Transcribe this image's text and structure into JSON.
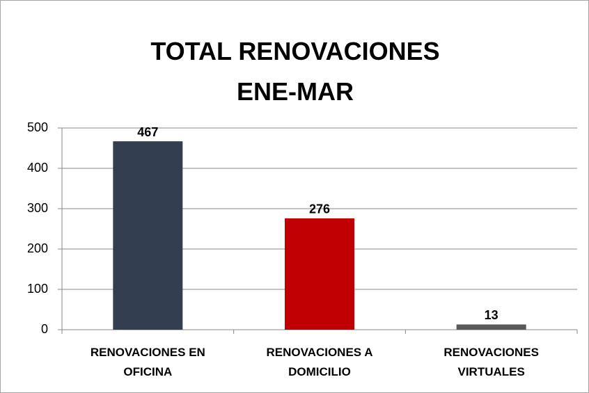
{
  "chart_data": {
    "type": "bar",
    "title": "TOTAL RENOVACIONES ENE-MAR",
    "categories": [
      "RENOVACIONES EN OFICINA",
      "RENOVACIONES A DOMICILIO",
      "RENOVACIONES VIRTUALES"
    ],
    "values": [
      467,
      276,
      13
    ],
    "colors": [
      "#333f50",
      "#c00000",
      "#595959"
    ],
    "ylim": [
      0,
      500
    ],
    "yticks": [
      0,
      100,
      200,
      300,
      400,
      500
    ],
    "grid": true,
    "data_labels": true
  }
}
